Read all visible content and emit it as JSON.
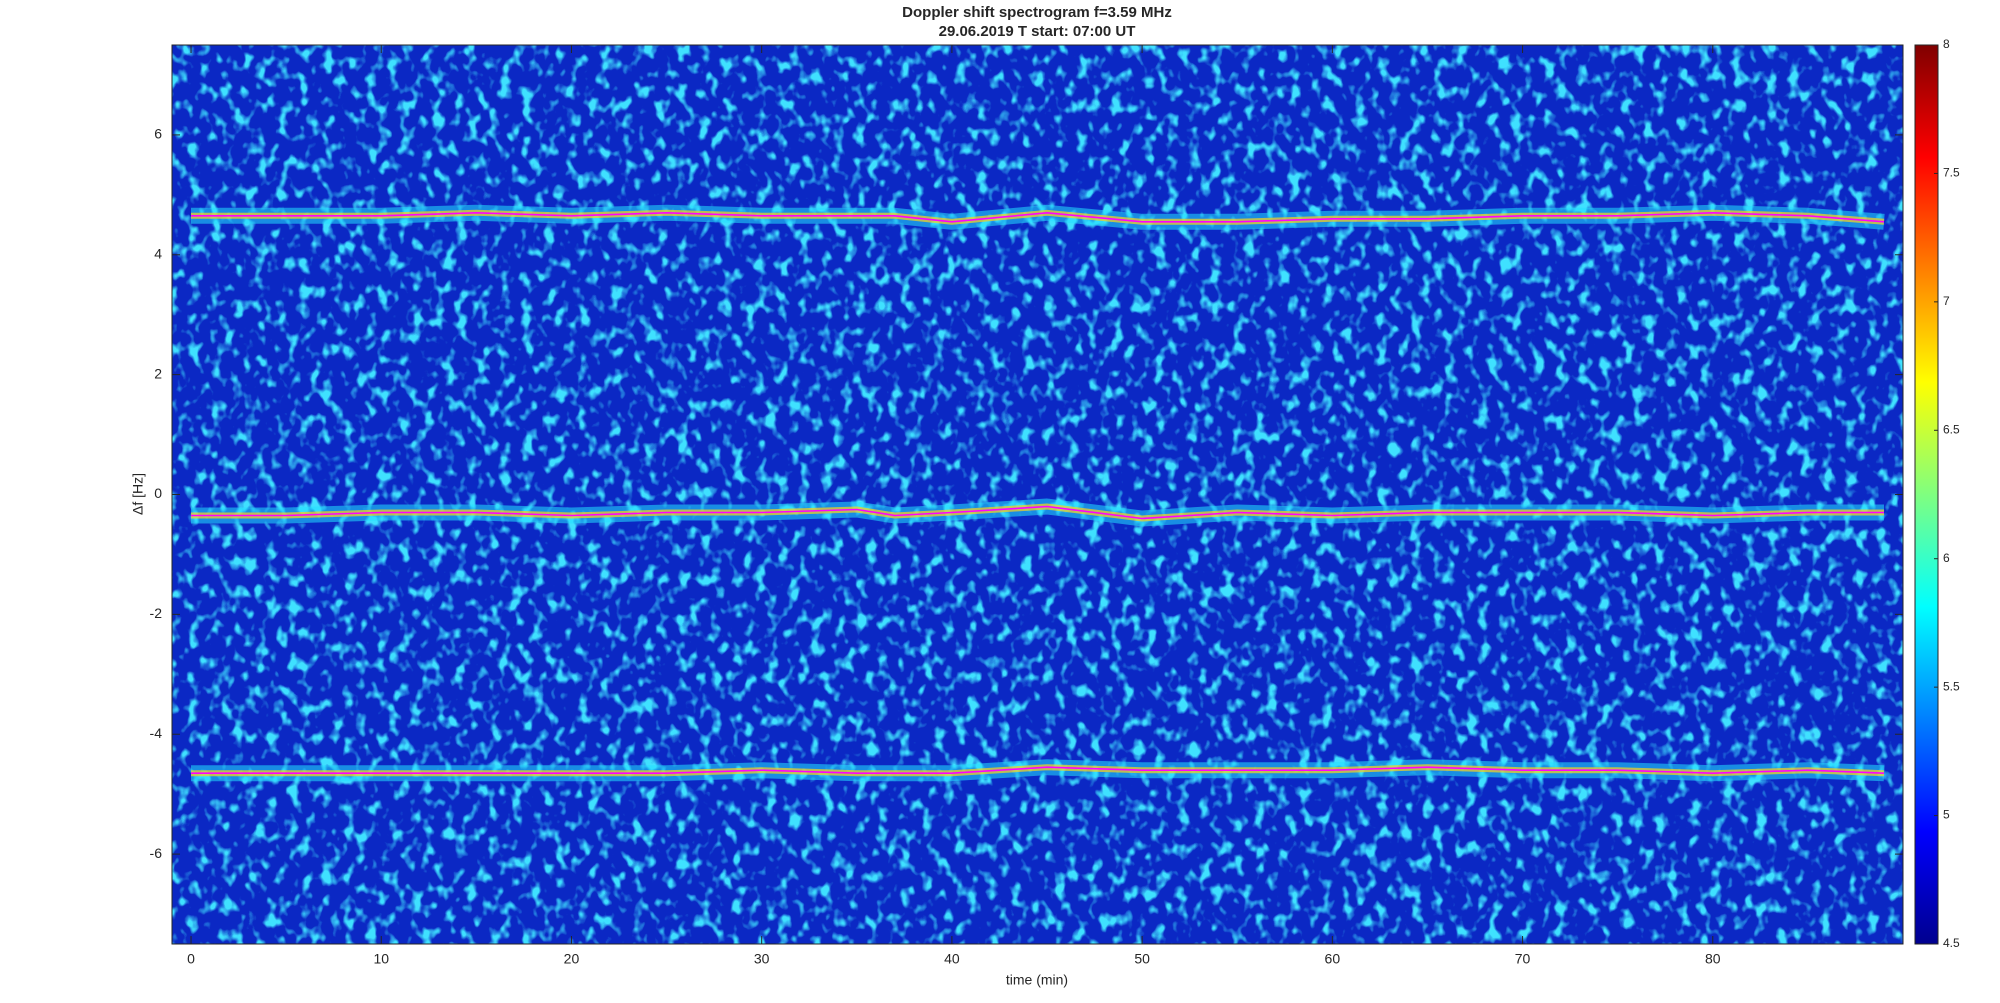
{
  "chart_data": {
    "type": "spectrogram",
    "title": "Doppler shift spectrogram f=3.59 MHz",
    "subtitle": "29.06.2019    T start: 07:00 UT",
    "x_label": "time (min)",
    "y_label": "Δf [Hz]",
    "xlim": [
      -1,
      90
    ],
    "xticks": [
      0,
      10,
      20,
      30,
      40,
      50,
      60,
      70,
      80
    ],
    "ylim": [
      -7.5,
      7.5
    ],
    "yticks": [
      -6,
      -4,
      -2,
      0,
      2,
      4,
      6
    ],
    "clim": [
      4.5,
      8
    ],
    "cticks": [
      4.5,
      5,
      5.5,
      6,
      6.5,
      7,
      7.5,
      8
    ],
    "colormap": "jet",
    "trace_color": "#ff00ff",
    "x": [
      0,
      5,
      10,
      15,
      20,
      25,
      30,
      35,
      37,
      40,
      45,
      50,
      55,
      60,
      65,
      70,
      75,
      80,
      85,
      89
    ],
    "traces": [
      {
        "values": [
          4.65,
          4.65,
          4.65,
          4.7,
          4.65,
          4.7,
          4.65,
          4.65,
          4.65,
          4.55,
          4.7,
          4.55,
          4.55,
          4.6,
          4.6,
          4.65,
          4.65,
          4.7,
          4.65,
          4.55
        ]
      },
      {
        "values": [
          -0.35,
          -0.35,
          -0.3,
          -0.3,
          -0.35,
          -0.3,
          -0.3,
          -0.25,
          -0.35,
          -0.3,
          -0.2,
          -0.4,
          -0.3,
          -0.35,
          -0.3,
          -0.3,
          -0.3,
          -0.35,
          -0.3,
          -0.3
        ]
      },
      {
        "values": [
          -4.65,
          -4.65,
          -4.65,
          -4.65,
          -4.65,
          -4.65,
          -4.6,
          -4.65,
          -4.65,
          -4.65,
          -4.55,
          -4.6,
          -4.6,
          -4.6,
          -4.55,
          -4.6,
          -4.6,
          -4.65,
          -4.6,
          -4.65
        ]
      }
    ]
  }
}
